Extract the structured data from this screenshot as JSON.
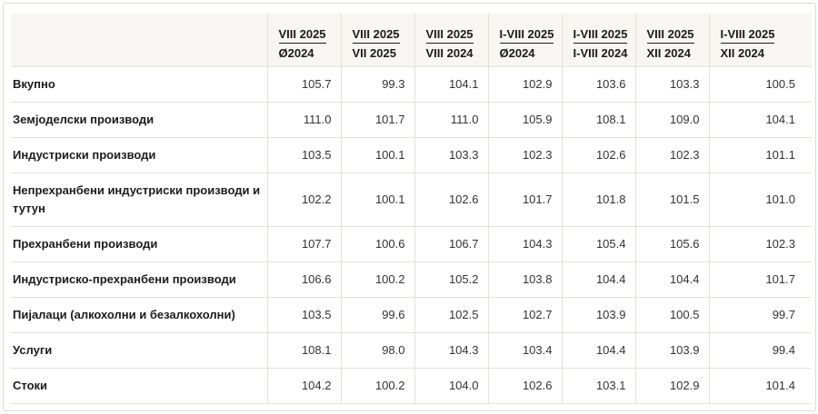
{
  "columns": [
    {
      "top": "VIII 2025",
      "bottom": "Ø2024"
    },
    {
      "top": "VIII 2025",
      "bottom": "VII 2025"
    },
    {
      "top": "VIII 2025",
      "bottom": "VIII 2024"
    },
    {
      "top": "I-VIII 2025",
      "bottom": "Ø2024"
    },
    {
      "top": "I-VIII 2025",
      "bottom": "I-VIII 2024"
    },
    {
      "top": "VIII 2025",
      "bottom": "XII 2024"
    },
    {
      "top": "I-VIII 2025",
      "bottom": "XII 2024"
    }
  ],
  "rows": [
    {
      "label": "Вкупно",
      "values": [
        "105.7",
        "99.3",
        "104.1",
        "102.9",
        "103.6",
        "103.3",
        "100.5"
      ]
    },
    {
      "label": "Земјоделски производи",
      "values": [
        "111.0",
        "101.7",
        "111.0",
        "105.9",
        "108.1",
        "109.0",
        "104.1"
      ]
    },
    {
      "label": "Индустриски производи",
      "values": [
        "103.5",
        "100.1",
        "103.3",
        "102.3",
        "102.6",
        "102.3",
        "101.1"
      ]
    },
    {
      "label": "Непрехранбени индустриски производи и тутун",
      "values": [
        "102.2",
        "100.1",
        "102.6",
        "101.7",
        "101.8",
        "101.5",
        "101.0"
      ]
    },
    {
      "label": "Прехранбени производи",
      "values": [
        "107.7",
        "100.6",
        "106.7",
        "104.3",
        "105.4",
        "105.6",
        "102.3"
      ]
    },
    {
      "label": "Индустриско-прехранбени производи",
      "values": [
        "106.6",
        "100.2",
        "105.2",
        "103.8",
        "104.4",
        "104.4",
        "101.7"
      ]
    },
    {
      "label": "Пијалаци (алкохолни и безалкохолни)",
      "values": [
        "103.5",
        "99.6",
        "102.5",
        "102.7",
        "103.9",
        "100.5",
        "99.7"
      ]
    },
    {
      "label": "Услуги",
      "values": [
        "108.1",
        "98.0",
        "104.3",
        "103.4",
        "104.4",
        "103.9",
        "99.4"
      ]
    },
    {
      "label": "Стоки",
      "values": [
        "104.2",
        "100.2",
        "104.0",
        "102.6",
        "103.1",
        "102.9",
        "101.4"
      ]
    }
  ]
}
